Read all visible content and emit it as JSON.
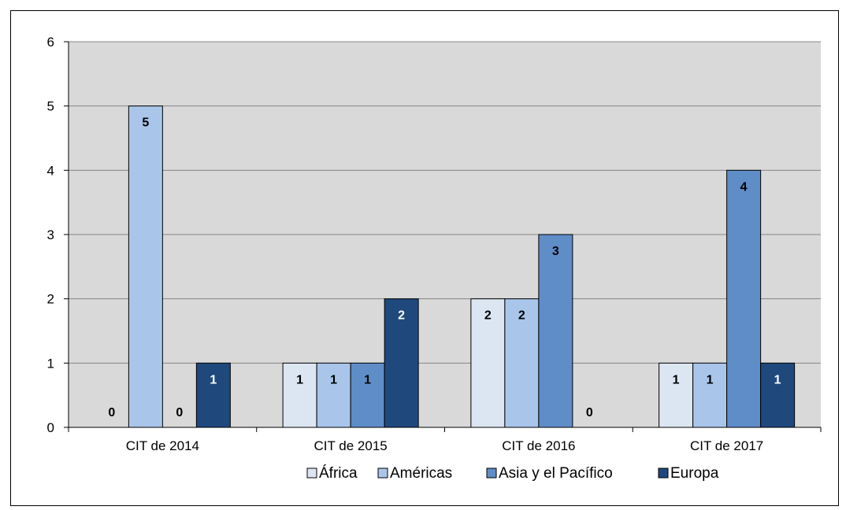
{
  "chart_data": {
    "type": "bar",
    "title": "",
    "xlabel": "",
    "ylabel": "",
    "categories": [
      "CIT de 2014",
      "CIT de 2015",
      "CIT de 2016",
      "CIT de 2017"
    ],
    "series": [
      {
        "name": "África",
        "values": [
          0,
          1,
          2,
          1
        ],
        "color": "#dce6f2",
        "label_color": "#000000"
      },
      {
        "name": "Américas",
        "values": [
          5,
          1,
          2,
          1
        ],
        "color": "#a9c6ea",
        "label_color": "#000000"
      },
      {
        "name": "Asia y el Pacífico",
        "values": [
          0,
          1,
          3,
          4
        ],
        "color": "#5f8dc8",
        "label_color": "#000000"
      },
      {
        "name": "Europa",
        "values": [
          1,
          2,
          0,
          1
        ],
        "color": "#1f497d",
        "label_color": "#ffffff"
      }
    ],
    "ylim": [
      0,
      6
    ],
    "yticks": [
      0,
      1,
      2,
      3,
      4,
      5,
      6
    ],
    "grid": true,
    "plot_background": "#d9d9d9",
    "legend_position": "bottom"
  }
}
